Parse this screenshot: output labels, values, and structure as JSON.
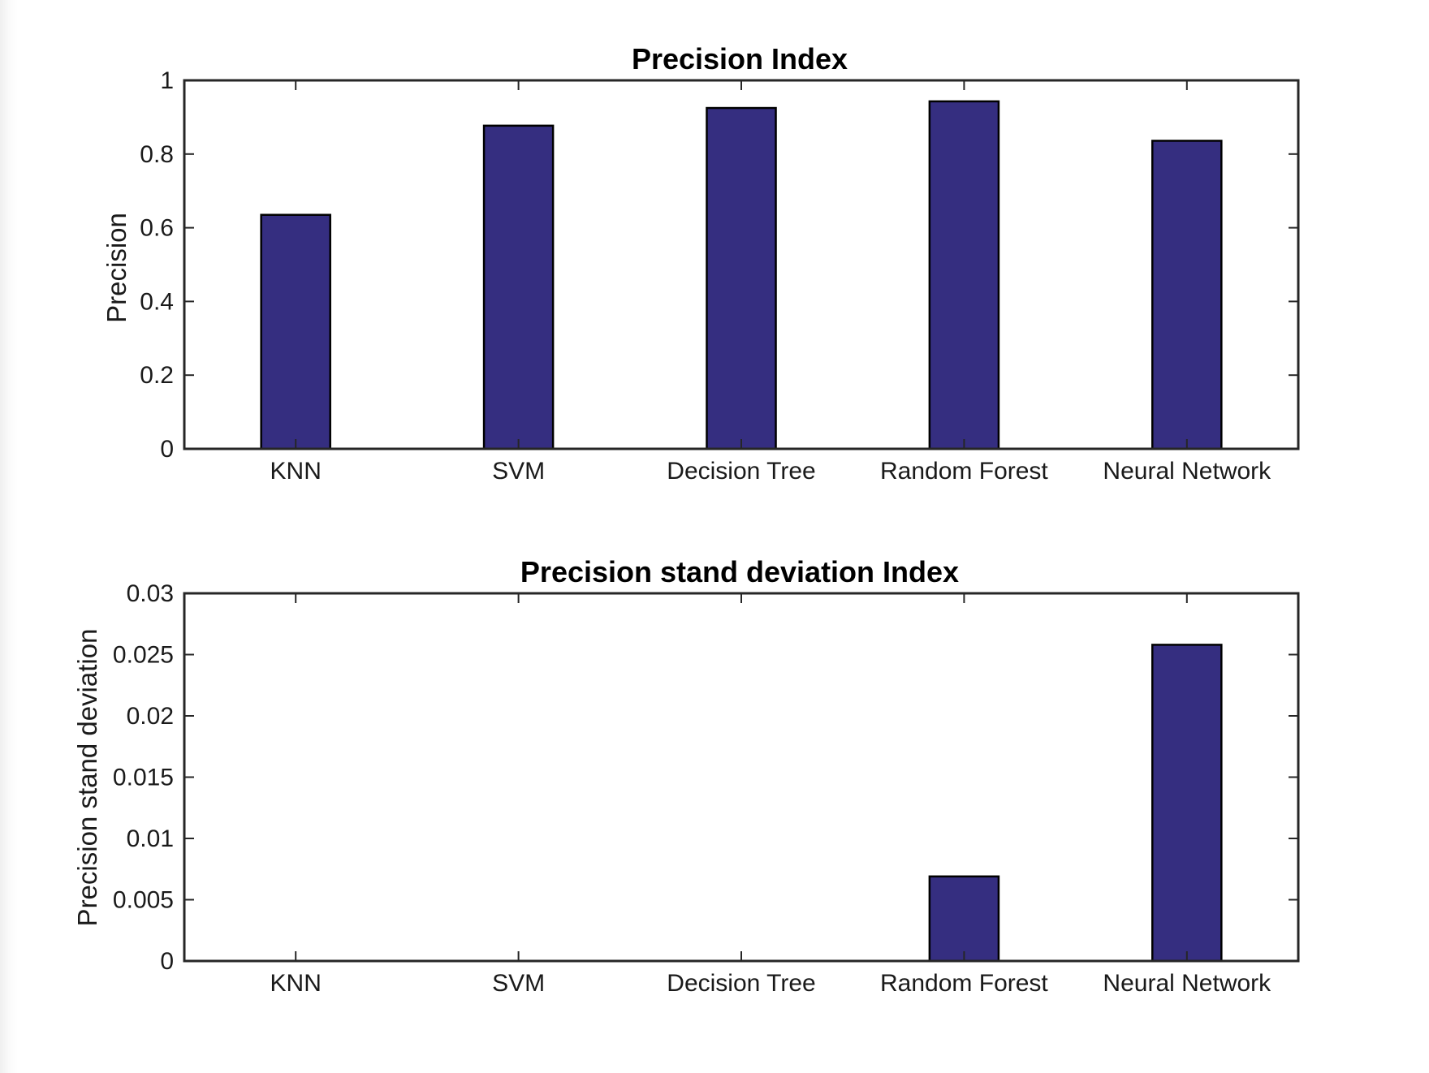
{
  "figure": {
    "bar_color": "#352e80",
    "edge_color": "#000000",
    "background": "#ffffff"
  },
  "chart_data": [
    {
      "type": "bar",
      "title": "Precision Index",
      "xlabel": "",
      "ylabel": "Precision",
      "categories": [
        "KNN",
        "SVM",
        "Decision Tree",
        "Random Forest",
        "Neural Network"
      ],
      "values": [
        0.635,
        0.877,
        0.925,
        0.943,
        0.836
      ],
      "ylim": [
        0,
        1
      ],
      "yticks": [
        0,
        0.2,
        0.4,
        0.6,
        0.8,
        1
      ],
      "ytick_labels": [
        "0",
        "0.2",
        "0.4",
        "0.6",
        "0.8",
        "1"
      ],
      "grid": false,
      "legend": "none"
    },
    {
      "type": "bar",
      "title": "Precision stand deviation Index",
      "xlabel": "",
      "ylabel": "Precision stand deviation",
      "categories": [
        "KNN",
        "SVM",
        "Decision Tree",
        "Random Forest",
        "Neural Network"
      ],
      "values": [
        0,
        0,
        0,
        0.0069,
        0.0258
      ],
      "ylim": [
        0,
        0.03
      ],
      "yticks": [
        0,
        0.005,
        0.01,
        0.015,
        0.02,
        0.025,
        0.03
      ],
      "ytick_labels": [
        "0",
        "0.005",
        "0.01",
        "0.015",
        "0.02",
        "0.025",
        "0.03"
      ],
      "grid": false,
      "legend": "none"
    }
  ]
}
